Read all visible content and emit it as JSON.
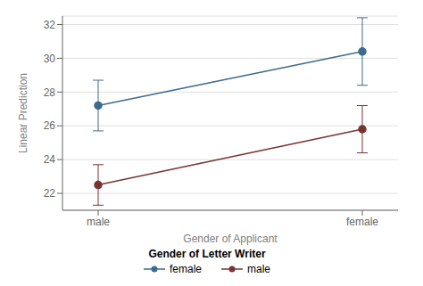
{
  "chart_data": {
    "type": "line",
    "categories": [
      "male",
      "female"
    ],
    "xlabel": "Gender of Applicant",
    "ylabel": "Linear Prediction",
    "legend_title": "Gender of Letter Writer",
    "series": [
      {
        "name": "female",
        "color": "#3d6b8a",
        "marker": "circle",
        "line_style": "solid",
        "values": [
          27.2,
          30.4
        ],
        "error_low": [
          1.5,
          2.0
        ],
        "error_high": [
          1.5,
          2.0
        ]
      },
      {
        "name": "male",
        "color": "#7a3333",
        "marker": "circle",
        "line_style": "solid",
        "values": [
          22.5,
          25.8
        ],
        "error_low": [
          1.2,
          1.4
        ],
        "error_high": [
          1.2,
          1.4
        ]
      }
    ],
    "ylim": [
      21.0,
      32.5
    ],
    "yticks": [
      22,
      24,
      26,
      28,
      30,
      32
    ],
    "grid": true,
    "legend": "bottom"
  }
}
